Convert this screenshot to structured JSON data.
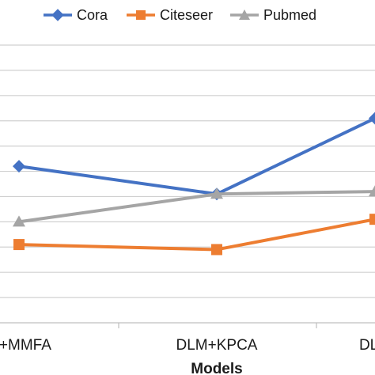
{
  "chart_data": {
    "type": "line",
    "categories": [
      "DLM+MMFA",
      "DLM+KPCA",
      "DLM"
    ],
    "category_labels_visible": [
      "M+MMFA",
      "DLM+KPCA",
      "DLM"
    ],
    "xlabel": "Models",
    "ylim": [
      0,
      11
    ],
    "grid": true,
    "legend_placement": "top",
    "series": [
      {
        "name": "Cora",
        "color": "#4472C4",
        "marker": "diamond",
        "values": [
          6.2,
          5.1,
          8.1
        ]
      },
      {
        "name": "Citeseer",
        "color": "#ED7D31",
        "marker": "square",
        "values": [
          3.1,
          2.9,
          4.1
        ]
      },
      {
        "name": "Pubmed",
        "color": "#A5A5A5",
        "marker": "triangle",
        "values": [
          4.0,
          5.1,
          5.2
        ]
      }
    ]
  }
}
